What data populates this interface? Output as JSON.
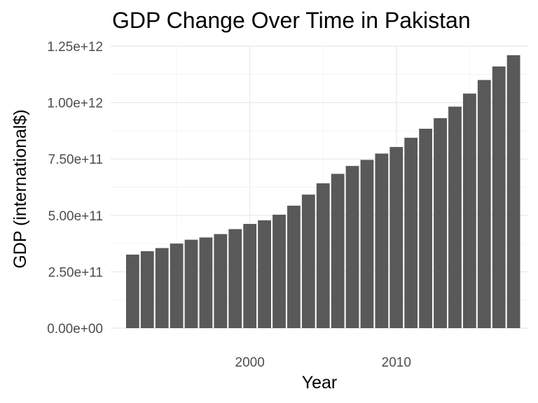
{
  "chart_data": {
    "type": "bar",
    "title": "GDP Change Over Time in Pakistan",
    "xlabel": "Year",
    "ylabel": "GDP (international$)",
    "x": [
      1992,
      1993,
      1994,
      1995,
      1996,
      1997,
      1998,
      1999,
      2000,
      2001,
      2002,
      2003,
      2004,
      2005,
      2006,
      2007,
      2008,
      2009,
      2010,
      2011,
      2012,
      2013,
      2014,
      2015,
      2016,
      2017,
      2018
    ],
    "values": [
      326000000000.0,
      341000000000.0,
      355000000000.0,
      375000000000.0,
      392000000000.0,
      402000000000.0,
      417000000000.0,
      439000000000.0,
      462000000000.0,
      478000000000.0,
      503000000000.0,
      543000000000.0,
      592000000000.0,
      642000000000.0,
      684000000000.0,
      719000000000.0,
      746000000000.0,
      774000000000.0,
      803000000000.0,
      844000000000.0,
      884000000000.0,
      931000000000.0,
      982000000000.0,
      1040000000000.0,
      1100000000000.0,
      1160000000000.0,
      1210000000000.0
    ],
    "xlim": [
      1990.5,
      2019
    ],
    "ylim": [
      0,
      1250000000000.0
    ],
    "x_ticks": [
      2000,
      2010
    ],
    "x_tick_labels": [
      "2000",
      "2010"
    ],
    "y_ticks": [
      0,
      250000000000.0,
      500000000000.0,
      750000000000.0,
      1000000000000.0,
      1250000000000.0
    ],
    "y_tick_labels": [
      "0.00e+00",
      "2.50e+11",
      "5.00e+11",
      "7.50e+11",
      "1.00e+12",
      "1.25e+12"
    ],
    "bar_color": "#595959",
    "grid": true,
    "legend": "none"
  }
}
